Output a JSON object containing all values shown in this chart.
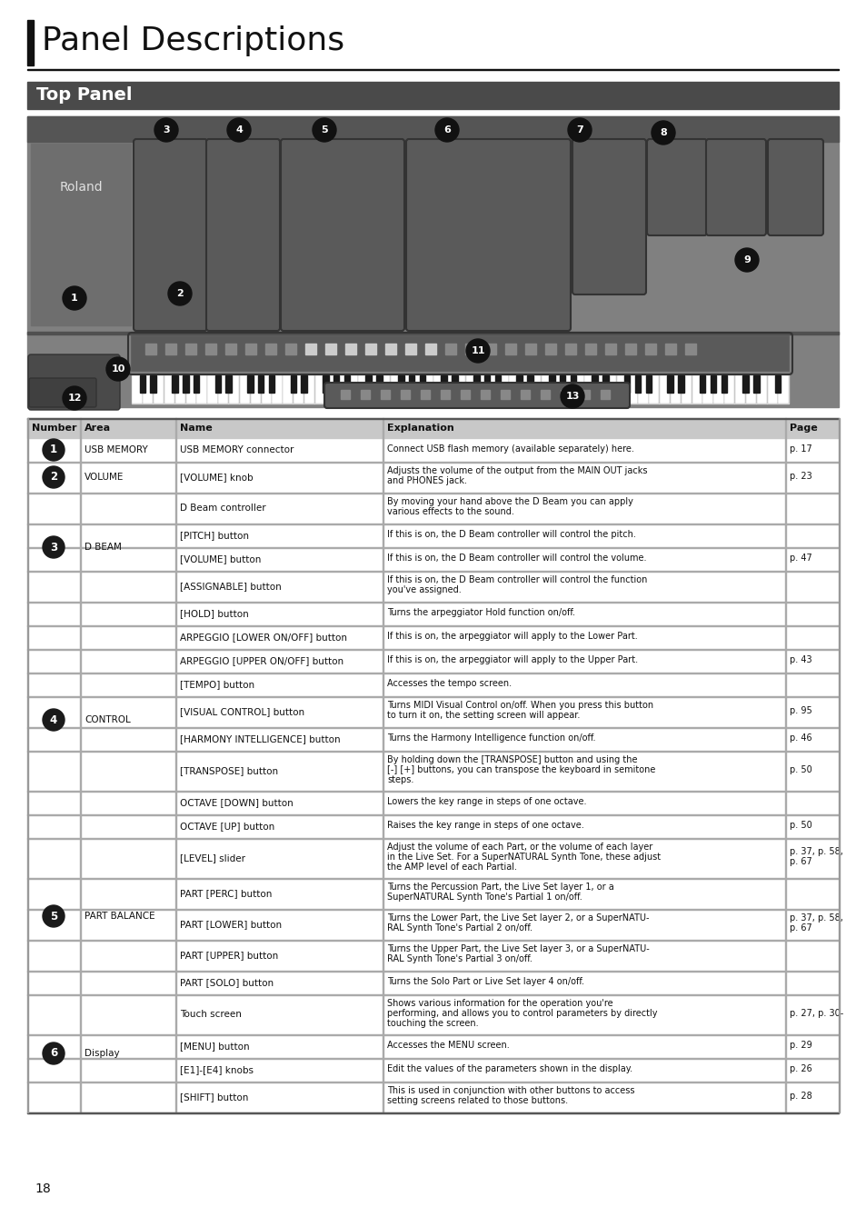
{
  "page_title": "Panel Descriptions",
  "section_title": "Top Panel",
  "page_number": "18",
  "table_headers": [
    "Number",
    "Area",
    "Name",
    "Explanation",
    "Page"
  ],
  "table_rows": [
    {
      "number": "1",
      "area": "USB MEMORY",
      "name": "USB MEMORY connector",
      "explanation": "Connect USB flash memory (available separately) here.",
      "page": "p. 17"
    },
    {
      "number": "2",
      "area": "VOLUME",
      "name": "[VOLUME] knob",
      "explanation": "Adjusts the volume of the output from the MAIN OUT jacks\nand PHONES jack.",
      "page": "p. 23"
    },
    {
      "number": "3_1",
      "area": "D BEAM",
      "name": "D Beam controller",
      "explanation": "By moving your hand above the D Beam you can apply\nvarious effects to the sound.",
      "page": ""
    },
    {
      "number": "3_2",
      "area": "",
      "name": "[PITCH] button",
      "explanation": "If this is on, the D Beam controller will control the pitch.",
      "page": ""
    },
    {
      "number": "3_3",
      "area": "",
      "name": "[VOLUME] button",
      "explanation": "If this is on, the D Beam controller will control the volume.",
      "page": "p. 47"
    },
    {
      "number": "3_4",
      "area": "",
      "name": "[ASSIGNABLE] button",
      "explanation": "If this is on, the D Beam controller will control the function\nyou've assigned.",
      "page": ""
    },
    {
      "number": "4_1",
      "area": "CONTROL",
      "name": "[HOLD] button",
      "explanation": "Turns the arpeggiator Hold function on/off.",
      "page": ""
    },
    {
      "number": "4_2",
      "area": "",
      "name": "ARPEGGIO [LOWER ON/OFF] button",
      "explanation": "If this is on, the arpeggiator will apply to the Lower Part.",
      "page": ""
    },
    {
      "number": "4_3",
      "area": "",
      "name": "ARPEGGIO [UPPER ON/OFF] button",
      "explanation": "If this is on, the arpeggiator will apply to the Upper Part.",
      "page": "p. 43"
    },
    {
      "number": "4_4",
      "area": "",
      "name": "[TEMPO] button",
      "explanation": "Accesses the tempo screen.",
      "page": ""
    },
    {
      "number": "4_5",
      "area": "",
      "name": "[VISUAL CONTROL] button",
      "explanation": "Turns MIDI Visual Control on/off. When you press this button\nto turn it on, the setting screen will appear.",
      "page": "p. 95"
    },
    {
      "number": "4_6",
      "area": "",
      "name": "[HARMONY INTELLIGENCE] button",
      "explanation": "Turns the Harmony Intelligence function on/off.",
      "page": "p. 46"
    },
    {
      "number": "4_7",
      "area": "",
      "name": "[TRANSPOSE] button",
      "explanation": "By holding down the [TRANSPOSE] button and using the\n[-] [+] buttons, you can transpose the keyboard in semitone\nsteps.",
      "page": "p. 50"
    },
    {
      "number": "4_8",
      "area": "",
      "name": "OCTAVE [DOWN] button",
      "explanation": "Lowers the key range in steps of one octave.",
      "page": ""
    },
    {
      "number": "4_9",
      "area": "",
      "name": "OCTAVE [UP] button",
      "explanation": "Raises the key range in steps of one octave.",
      "page": "p. 50"
    },
    {
      "number": "5_1",
      "area": "PART BALANCE",
      "name": "[LEVEL] slider",
      "explanation": "Adjust the volume of each Part, or the volume of each layer\nin the Live Set. For a SuperNATURAL Synth Tone, these adjust\nthe AMP level of each Partial.",
      "page": "p. 37, p. 58,\np. 67"
    },
    {
      "number": "5_2",
      "area": "",
      "name": "PART [PERC] button",
      "explanation": "Turns the Percussion Part, the Live Set layer 1, or a\nSuperNATURAL Synth Tone's Partial 1 on/off.",
      "page": ""
    },
    {
      "number": "5_3",
      "area": "",
      "name": "PART [LOWER] button",
      "explanation": "Turns the Lower Part, the Live Set layer 2, or a SuperNATU-\nRAL Synth Tone's Partial 2 on/off.",
      "page": "p. 37, p. 58,\np. 67"
    },
    {
      "number": "5_4",
      "area": "",
      "name": "PART [UPPER] button",
      "explanation": "Turns the Upper Part, the Live Set layer 3, or a SuperNATU-\nRAL Synth Tone's Partial 3 on/off.",
      "page": ""
    },
    {
      "number": "5_5",
      "area": "",
      "name": "PART [SOLO] button",
      "explanation": "Turns the Solo Part or Live Set layer 4 on/off.",
      "page": ""
    },
    {
      "number": "6_1",
      "area": "Display",
      "name": "Touch screen",
      "explanation": "Shows various information for the operation you're\nperforming, and allows you to control parameters by directly\ntouching the screen.",
      "page": "p. 27, p. 30-"
    },
    {
      "number": "6_2",
      "area": "",
      "name": "[MENU] button",
      "explanation": "Accesses the MENU screen.",
      "page": "p. 29"
    },
    {
      "number": "6_3",
      "area": "",
      "name": "[E1]-[E4] knobs",
      "explanation": "Edit the values of the parameters shown in the display.",
      "page": "p. 26"
    },
    {
      "number": "6_4",
      "area": "",
      "name": "[SHIFT] button",
      "explanation": "This is used in conjunction with other buttons to access\nsetting screens related to those buttons.",
      "page": "p. 28"
    }
  ],
  "number_groups": {
    "1": [
      "1"
    ],
    "2": [
      "2"
    ],
    "3": [
      "3_1",
      "3_2",
      "3_3",
      "3_4"
    ],
    "4": [
      "4_1",
      "4_2",
      "4_3",
      "4_4",
      "4_5",
      "4_6",
      "4_7",
      "4_8",
      "4_9"
    ],
    "5": [
      "5_1",
      "5_2",
      "5_3",
      "5_4",
      "5_5"
    ],
    "6": [
      "6_1",
      "6_2",
      "6_3",
      "6_4"
    ]
  },
  "number_display": {
    "1": "1",
    "2": "2",
    "3": "3",
    "4": "4",
    "5": "5",
    "6": "6"
  },
  "header_bg": "#c8c8c8",
  "section_title_bg": "#4a4a4a",
  "section_title_color": "#ffffff",
  "page_title_bar_color": "#1a1a1a",
  "row_color": "#ffffff",
  "border_color": "#999999",
  "number_circle_color": "#1a1a1a",
  "number_circle_text_color": "#ffffff",
  "synth_bg": "#888888",
  "synth_dark": "#555555",
  "synth_mid": "#6a6a6a"
}
